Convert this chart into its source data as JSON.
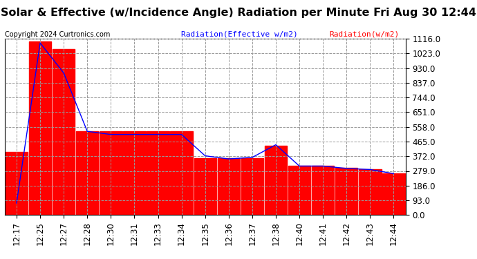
{
  "title": "Solar & Effective (w/Incidence Angle) Radiation per Minute Fri Aug 30 12:44",
  "copyright": "Copyright 2024 Curtronics.com",
  "legend_label1": "Radiation(Effective w/m2)",
  "legend_label2": "Radiation(w/m2)",
  "x_labels": [
    "12:17",
    "12:25",
    "12:27",
    "12:28",
    "12:30",
    "12:31",
    "12:33",
    "12:34",
    "12:35",
    "12:36",
    "12:37",
    "12:38",
    "12:40",
    "12:41",
    "12:42",
    "12:43",
    "12:44"
  ],
  "bar_values": [
    400,
    1100,
    1050,
    530,
    530,
    530,
    530,
    530,
    360,
    360,
    360,
    440,
    310,
    310,
    300,
    290,
    265
  ],
  "line_values": [
    75,
    1090,
    900,
    530,
    510,
    510,
    510,
    510,
    375,
    355,
    365,
    445,
    310,
    310,
    295,
    288,
    262
  ],
  "ylim": [
    0,
    1116.0
  ],
  "yticks": [
    0.0,
    93.0,
    186.0,
    279.0,
    372.0,
    465.0,
    558.0,
    651.0,
    744.0,
    837.0,
    930.0,
    1023.0,
    1116.0
  ],
  "bar_color": "#ff0000",
  "line_color": "blue",
  "background_color": "#ffffff",
  "grid_color": "#999999",
  "title_fontsize": 11.5,
  "tick_fontsize": 8.5,
  "copyright_fontsize": 7,
  "legend_fontsize": 8
}
